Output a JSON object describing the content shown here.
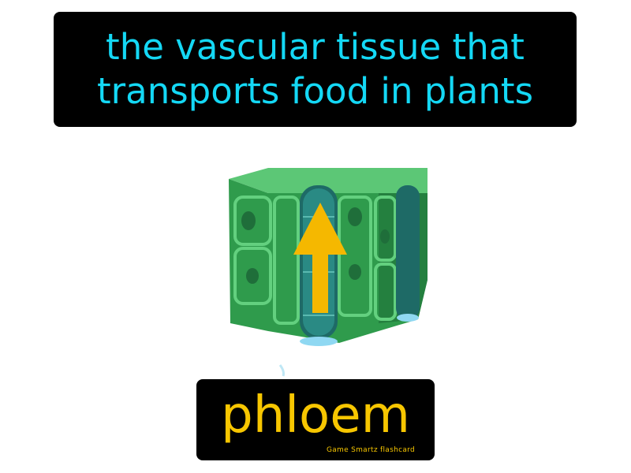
{
  "definition": {
    "line1": "the vascular tissue that",
    "line2": "transports food in plants"
  },
  "term": {
    "word": "phloem",
    "brand": "Game Smartz flashcard"
  },
  "illustration": {
    "icon": "phloem-tissue-icon",
    "arrow_icon": "up-arrow-icon",
    "colors": {
      "tissue_green": "#2e9a4a",
      "tissue_light": "#4fc06a",
      "tube_teal": "#1f6b68",
      "arrow": "#f5b800",
      "sap_blue": "#8fd8f2"
    }
  },
  "colors": {
    "definition_text": "#14d8f5",
    "term_text": "#f7c600",
    "box_bg": "#000000"
  }
}
